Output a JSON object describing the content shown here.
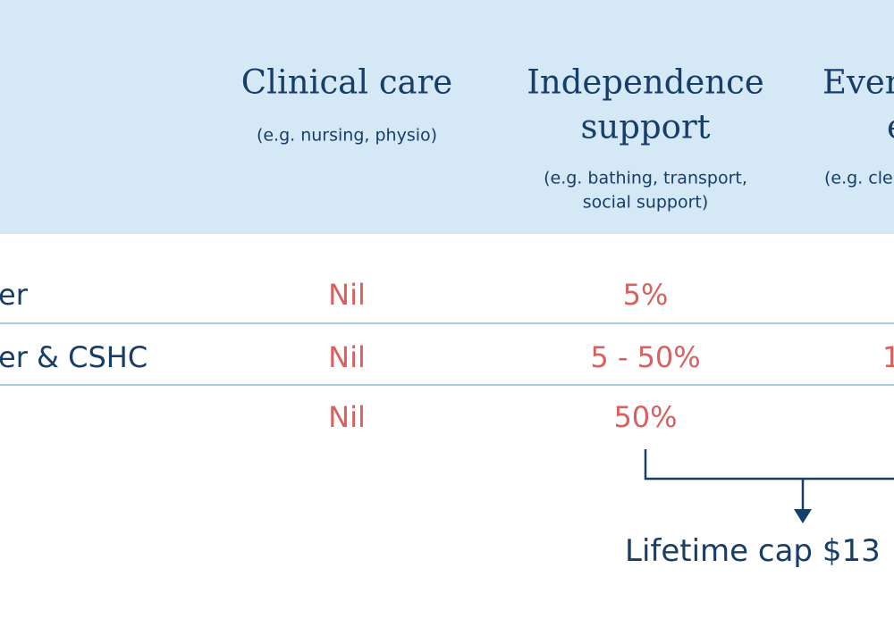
{
  "header": {
    "columns": [
      {
        "title": [
          "Clinical care"
        ],
        "note": [
          "(e.g. nursing, physio)"
        ]
      },
      {
        "title": [
          "Independence",
          "support"
        ],
        "note": [
          "(e.g. bathing, transport,",
          "social support)"
        ]
      },
      {
        "title": [
          "Ever",
          "e"
        ],
        "note": [
          "(e.g. cle"
        ]
      }
    ]
  },
  "table": {
    "rows": [
      [
        "er",
        "Nil",
        "5%"
      ],
      [
        "er & CSHC",
        "Nil",
        "5 - 50%",
        "1"
      ],
      [
        "",
        "Nil",
        "50%"
      ]
    ]
  },
  "footer": {
    "cap": "Lifetime cap $13"
  }
}
